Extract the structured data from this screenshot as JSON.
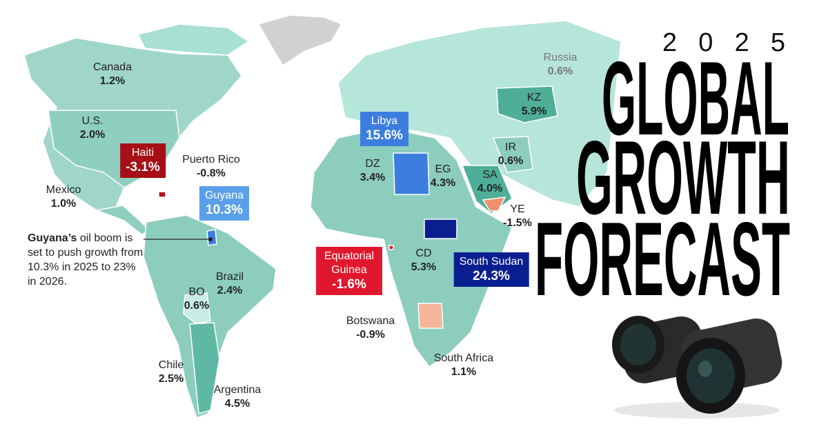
{
  "header": {
    "year": "2025",
    "title": [
      "GLOBAL",
      "GROWTH",
      "FORECAST"
    ]
  },
  "countries": [
    {
      "name": "Canada",
      "growth": "1.2%"
    },
    {
      "name": "U.S.",
      "growth": "2.0%"
    },
    {
      "name": "Mexico",
      "growth": "1.0%"
    },
    {
      "name": "Haiti",
      "growth": "-3.1%"
    },
    {
      "name": "Puerto Rico",
      "growth": "-0.8%"
    },
    {
      "name": "Guyana",
      "growth": "10.3%"
    },
    {
      "name": "Brazil",
      "growth": "2.4%"
    },
    {
      "name": "BO",
      "growth": "0.6%"
    },
    {
      "name": "Chile",
      "growth": "2.5%"
    },
    {
      "name": "Argentina",
      "growth": "4.5%"
    },
    {
      "name": "Russia",
      "growth": "0.6%"
    },
    {
      "name": "KZ",
      "growth": "5.9%"
    },
    {
      "name": "Libya",
      "growth": "15.6%"
    },
    {
      "name": "DZ",
      "growth": "3.4%"
    },
    {
      "name": "EG",
      "growth": "4.3%"
    },
    {
      "name": "IR",
      "growth": "0.6%"
    },
    {
      "name": "SA",
      "growth": "4.0%"
    },
    {
      "name": "YE",
      "growth": "-1.5%"
    },
    {
      "name": "Equatorial Guinea",
      "growth": "-1.6%"
    },
    {
      "name": "CD",
      "growth": "5.3%"
    },
    {
      "name": "South Sudan",
      "growth": "24.3%"
    },
    {
      "name": "Botswana",
      "growth": "-0.9%"
    },
    {
      "name": "South Africa",
      "growth": "1.1%"
    }
  ],
  "callout": {
    "lead": "Guyana’s",
    "text": "oil boom is set to push growth from 10.3% in 2025 to 23% in 2026."
  }
}
